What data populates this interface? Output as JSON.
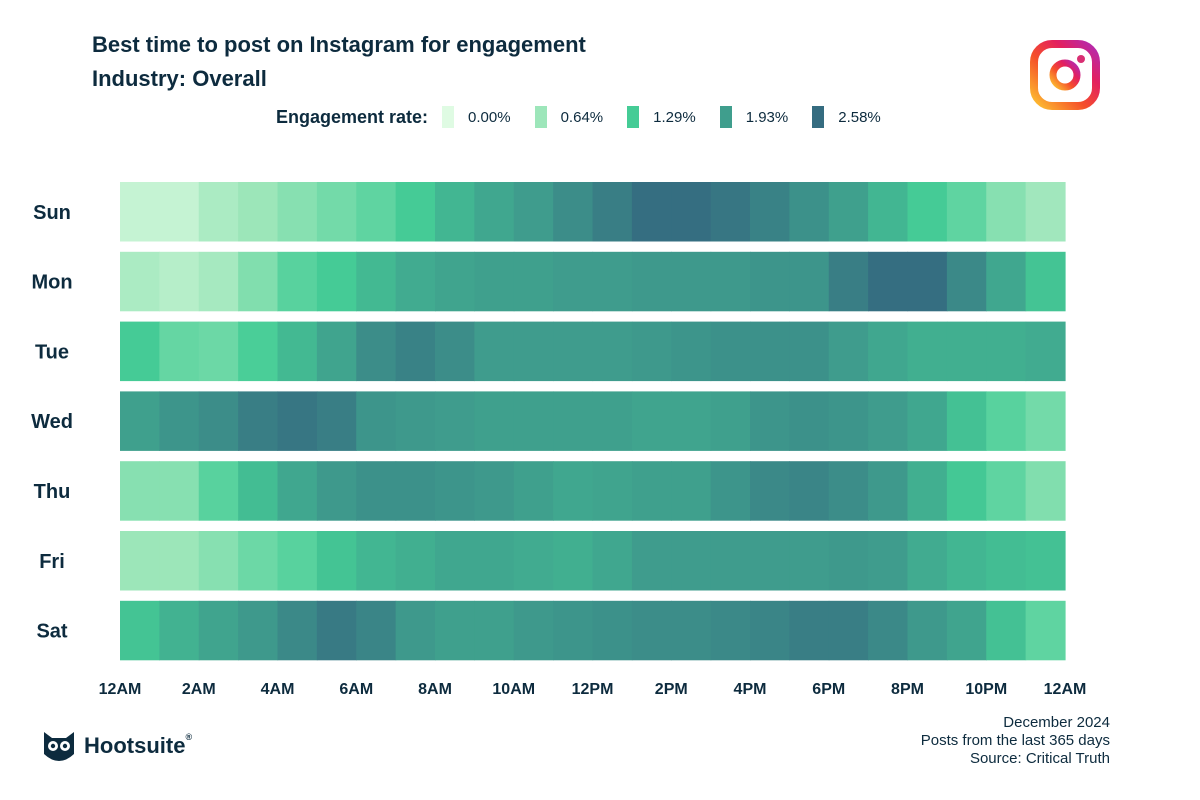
{
  "title": "Best time to post on Instagram for engagement",
  "subtitle": "Industry: Overall",
  "legend": {
    "label": "Engagement rate:",
    "items": [
      {
        "value": "0.00%",
        "color": "#dffbe3"
      },
      {
        "value": "0.64%",
        "color": "#9de6ba"
      },
      {
        "value": "1.29%",
        "color": "#45cc96"
      },
      {
        "value": "1.93%",
        "color": "#3f9e8d"
      },
      {
        "value": "2.58%",
        "color": "#356c80"
      }
    ]
  },
  "chart_data": {
    "type": "heatmap",
    "title": "Best time to post on Instagram for engagement",
    "subtitle": "Industry: Overall",
    "unit": "%",
    "color_scale": {
      "min": 0,
      "max": 2.58,
      "stops": [
        0,
        0.64,
        1.29,
        1.93,
        2.58
      ],
      "colors": [
        "#dffbe3",
        "#9de6ba",
        "#45cc96",
        "#3f9e8d",
        "#356c80"
      ]
    },
    "rows": [
      "Sun",
      "Mon",
      "Tue",
      "Wed",
      "Thu",
      "Fri",
      "Sat"
    ],
    "x_tick_labels": [
      "12AM",
      "2AM",
      "4AM",
      "6AM",
      "8AM",
      "10AM",
      "12PM",
      "2PM",
      "4PM",
      "6PM",
      "8PM",
      "10PM",
      "12AM"
    ],
    "hours": 24,
    "values": [
      [
        0.25,
        0.25,
        0.5,
        0.65,
        0.8,
        0.95,
        1.1,
        1.3,
        1.6,
        1.8,
        1.95,
        2.15,
        2.35,
        2.55,
        2.55,
        2.45,
        2.3,
        2.1,
        1.9,
        1.6,
        1.3,
        1.1,
        0.8,
        0.6
      ],
      [
        0.5,
        0.4,
        0.55,
        0.85,
        1.15,
        1.3,
        1.55,
        1.75,
        1.85,
        1.9,
        1.9,
        1.95,
        1.95,
        2.0,
        2.0,
        2.0,
        2.05,
        2.05,
        2.35,
        2.55,
        2.55,
        2.2,
        1.8,
        1.4
      ],
      [
        1.3,
        1.05,
        1.0,
        1.25,
        1.55,
        1.85,
        2.15,
        2.3,
        2.15,
        1.95,
        1.95,
        1.95,
        1.95,
        2.0,
        2.05,
        2.1,
        2.1,
        2.1,
        1.95,
        1.8,
        1.7,
        1.7,
        1.7,
        1.75
      ],
      [
        1.9,
        2.05,
        2.15,
        2.35,
        2.45,
        2.35,
        2.05,
        2.0,
        1.95,
        1.9,
        1.9,
        1.9,
        1.9,
        1.85,
        1.85,
        1.9,
        2.05,
        2.1,
        2.05,
        1.95,
        1.8,
        1.45,
        1.15,
        0.95
      ],
      [
        0.8,
        0.8,
        1.15,
        1.5,
        1.8,
        2.0,
        2.1,
        2.1,
        2.05,
        2.0,
        1.9,
        1.8,
        1.85,
        1.9,
        1.9,
        2.05,
        2.2,
        2.25,
        2.15,
        2.0,
        1.7,
        1.35,
        1.1,
        0.85
      ],
      [
        0.65,
        0.65,
        0.8,
        1.0,
        1.15,
        1.4,
        1.6,
        1.7,
        1.8,
        1.8,
        1.75,
        1.7,
        1.8,
        1.95,
        1.95,
        1.95,
        1.95,
        1.95,
        2.0,
        1.95,
        1.75,
        1.6,
        1.5,
        1.45
      ],
      [
        1.4,
        1.65,
        1.85,
        2.0,
        2.2,
        2.4,
        2.25,
        2.0,
        1.9,
        1.9,
        2.0,
        2.05,
        2.1,
        2.15,
        2.15,
        2.2,
        2.25,
        2.35,
        2.35,
        2.2,
        2.0,
        1.85,
        1.45,
        1.1
      ]
    ]
  },
  "footer": {
    "date": "December 2024",
    "posts": "Posts from the last 365 days",
    "source": "Source: Critical Truth"
  },
  "brand": {
    "name": "Hootsuite",
    "mark": "®"
  }
}
